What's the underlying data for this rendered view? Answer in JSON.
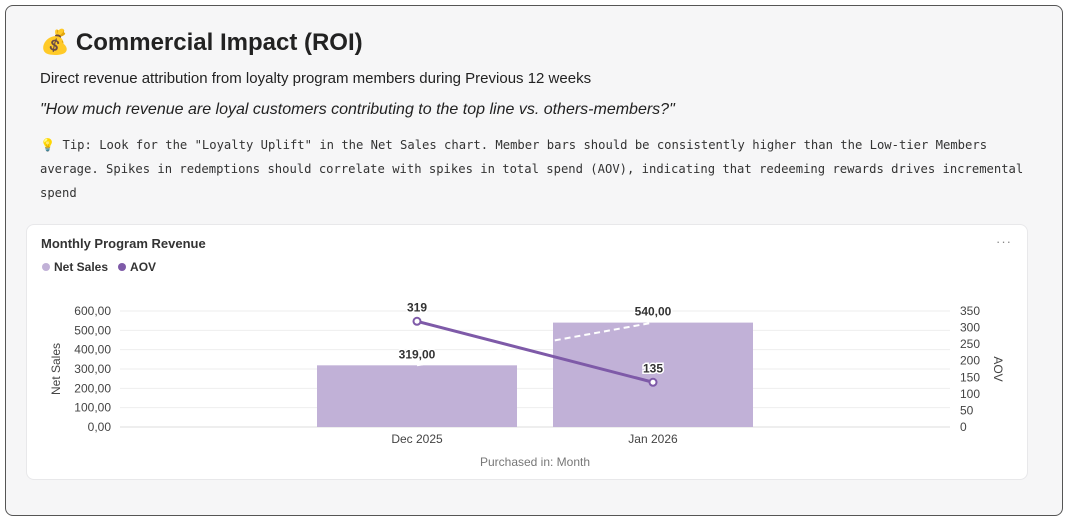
{
  "header": {
    "icon": "money-bag-icon",
    "emoji": "💰",
    "title": "Commercial Impact (ROI)",
    "subtitle": "Direct revenue attribution from loyalty program members during Previous 12 weeks",
    "question": "\"How much revenue are loyal customers contributing to the top line vs. others-members?\"",
    "tip": "💡 Tip: Look for the \"Loyalty Uplift\" in the Net Sales chart. Member bars should be consistently higher than the Low-tier Members average. Spikes in redemptions should correlate with spikes in total spend (AOV), indicating that redeeming rewards drives incremental spend"
  },
  "card": {
    "title": "Monthly Program Revenue",
    "more": "···"
  },
  "chart_data": {
    "type": "bar+line",
    "title": "Monthly Program Revenue",
    "categories": [
      "Dec 2025",
      "Jan 2026"
    ],
    "series": [
      {
        "name": "Net Sales",
        "type": "bar",
        "axis": "left",
        "values": [
          319,
          540
        ],
        "labels": [
          "319,00",
          "540,00"
        ],
        "color": "#c1b1d7"
      },
      {
        "name": "AOV",
        "type": "line",
        "axis": "right",
        "values": [
          319,
          135
        ],
        "labels": [
          "319",
          "135"
        ],
        "color": "#7e5aa8"
      }
    ],
    "xlabel": "Purchased in: Month",
    "ylabel": "Net Sales",
    "ylim": [
      0,
      600
    ],
    "yticks": [
      "0,00",
      "100,00",
      "200,00",
      "300,00",
      "400,00",
      "500,00",
      "600,00"
    ],
    "y2label": "AOV",
    "y2lim": [
      0,
      350
    ],
    "y2ticks": [
      "0",
      "50",
      "100",
      "150",
      "200",
      "250",
      "300",
      "350"
    ],
    "legend": "top-left",
    "grid": true
  }
}
